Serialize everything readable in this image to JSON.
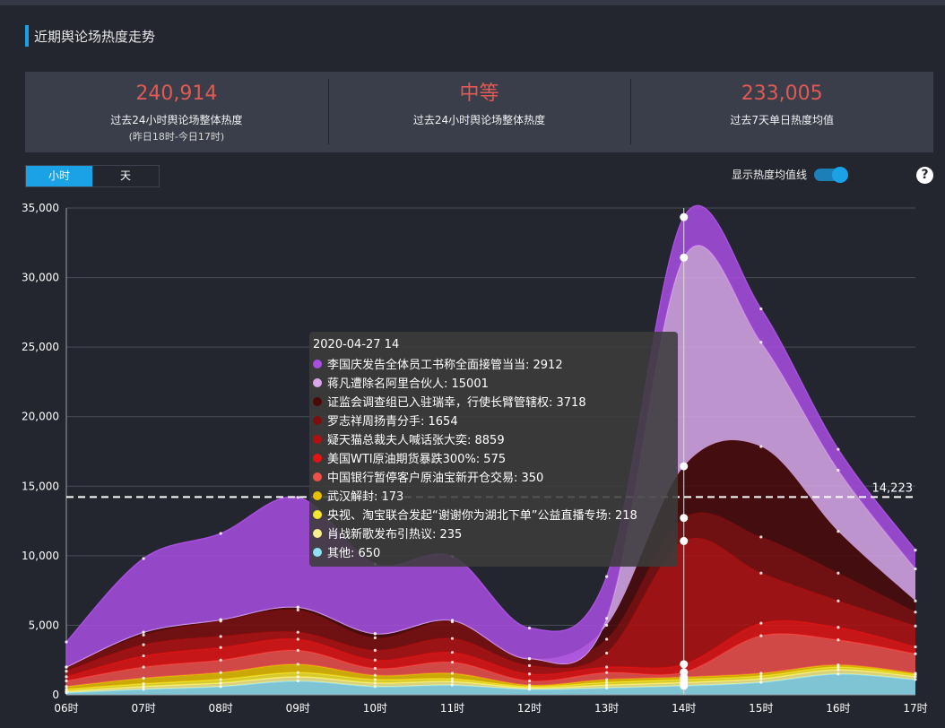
{
  "header": {
    "title": "近期舆论场热度走势"
  },
  "stats": [
    {
      "value": "240,914",
      "label": "过去24小时舆论场整体热度",
      "sub": "(昨日18时-今日17时)"
    },
    {
      "value": "中等",
      "label": "过去24小时舆论场整体热度",
      "sub": ""
    },
    {
      "value": "233,005",
      "label": "过去7天单日热度均值",
      "sub": ""
    }
  ],
  "tabs": [
    {
      "label": "小时",
      "active": true
    },
    {
      "label": "天",
      "active": false
    }
  ],
  "toggle": {
    "label": "显示热度均值线",
    "on": true
  },
  "help": {
    "symbol": "?"
  },
  "colors": {
    "accent": "#1aa1e6",
    "stat_value": "#e05a53",
    "panel_bg": "#23262e",
    "card_bg": "#3a3e4b"
  },
  "tooltip": {
    "title": "2020-04-27 14",
    "rows": [
      {
        "label": "李国庆发告全体员工书称全面接管当当: 2912",
        "color": "#a84ee0"
      },
      {
        "label": "蒋凡遭除名阿里合伙人: 15001",
        "color": "#d9a8ea"
      },
      {
        "label": "证监会调查组已入驻瑞幸，行使长臂管辖权: 3718",
        "color": "#4a0a0a"
      },
      {
        "label": "罗志祥周扬青分手: 1654",
        "color": "#7d0e0e"
      },
      {
        "label": "疑天猫总裁夫人喊话张大奕: 8859",
        "color": "#b01010"
      },
      {
        "label": "美国WTI原油期货暴跌300%: 575",
        "color": "#e31414"
      },
      {
        "label": "中国银行暂停客户原油宝新开仓交易: 350",
        "color": "#f0504a"
      },
      {
        "label": "武汉解封: 173",
        "color": "#e8c000"
      },
      {
        "label": "央视、淘宝联合发起“谢谢你为湖北下单”公益直播专场: 218",
        "color": "#f5e632"
      },
      {
        "label": "肖战新歌发布引热议: 235",
        "color": "#f7ef8c"
      },
      {
        "label": "其他: 650",
        "color": "#8fe0f2"
      }
    ]
  },
  "chart_data": {
    "type": "area",
    "stacked": true,
    "categories": [
      "06时",
      "07时",
      "08时",
      "09时",
      "10时",
      "11时",
      "12时",
      "13时",
      "14时",
      "15时",
      "16时",
      "17时"
    ],
    "ylim": [
      0,
      35000
    ],
    "yticks": [
      "0",
      "5,000",
      "10,000",
      "15,000",
      "20,000",
      "25,000",
      "30,000",
      "35,000"
    ],
    "average_line": {
      "value": 14223,
      "label": "14,223"
    },
    "highlight_index": 8,
    "grid": true,
    "series": [
      {
        "name": "其他",
        "color": "#8fe0f2",
        "values": [
          150,
          400,
          600,
          1000,
          600,
          700,
          400,
          500,
          650,
          900,
          1500,
          1100
        ]
      },
      {
        "name": "肖战新歌发布引热议",
        "color": "#f7ef8c",
        "values": [
          100,
          200,
          250,
          300,
          250,
          250,
          100,
          200,
          235,
          250,
          300,
          200
        ]
      },
      {
        "name": "央视、淘宝联合发起“谢谢你为湖北下单”公益直播专场",
        "color": "#f5e632",
        "values": [
          150,
          200,
          250,
          300,
          250,
          200,
          100,
          200,
          218,
          200,
          200,
          150
        ]
      },
      {
        "name": "武汉解封",
        "color": "#e8c000",
        "values": [
          200,
          400,
          500,
          600,
          300,
          400,
          100,
          200,
          173,
          200,
          150,
          100
        ]
      },
      {
        "name": "中国银行暂停客户原油宝新开仓交易",
        "color": "#f0504a",
        "values": [
          400,
          800,
          900,
          1000,
          500,
          800,
          300,
          500,
          350,
          2700,
          1800,
          1400
        ]
      },
      {
        "name": "美国WTI原油期货暴跌300%",
        "color": "#e31414",
        "values": [
          300,
          800,
          900,
          800,
          600,
          700,
          500,
          400,
          575,
          900,
          900,
          500
        ]
      },
      {
        "name": "疑天猫总裁夫人喊话张大奕",
        "color": "#b01010",
        "values": [
          400,
          800,
          800,
          500,
          700,
          1000,
          600,
          1000,
          8859,
          3600,
          1900,
          1500
        ]
      },
      {
        "name": "罗志祥周扬青分手",
        "color": "#7d0e0e",
        "values": [
          300,
          700,
          1100,
          1600,
          900,
          1200,
          500,
          1000,
          1654,
          2600,
          2000,
          1000
        ]
      },
      {
        "name": "证监会调查组已入驻瑞幸，行使长臂管辖权",
        "color": "#4a0a0a",
        "values": [
          0,
          200,
          100,
          200,
          300,
          100,
          0,
          1000,
          3718,
          6500,
          3000,
          800
        ]
      },
      {
        "name": "蒋凡遭除名阿里合伙人",
        "color": "#d9a8ea",
        "values": [
          0,
          0,
          0,
          0,
          0,
          0,
          0,
          500,
          15001,
          7500,
          4400,
          2300
        ]
      },
      {
        "name": "李国庆发告全体员工书称全面接管当当",
        "color": "#a84ee0",
        "values": [
          1800,
          5300,
          6200,
          7900,
          5000,
          4600,
          2200,
          3000,
          2912,
          2400,
          1500,
          1350
        ]
      }
    ]
  }
}
